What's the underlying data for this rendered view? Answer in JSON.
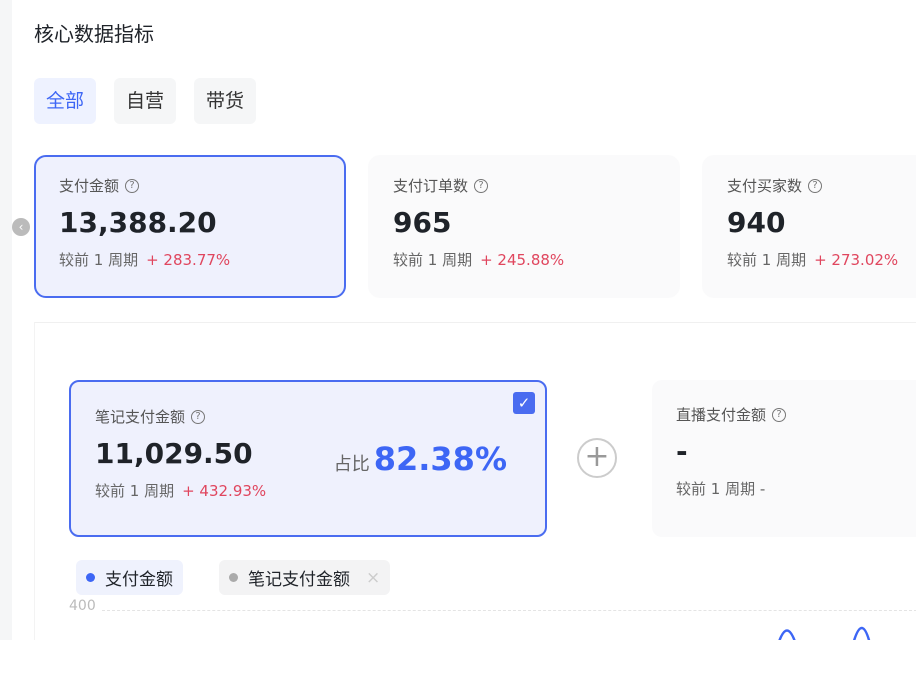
{
  "title": "核心数据指标",
  "tabs": [
    {
      "label": "全部",
      "active": true
    },
    {
      "label": "自营"
    },
    {
      "label": "带货"
    }
  ],
  "cards": [
    {
      "label": "支付金额",
      "value": "13,388.20",
      "compare": "较前 1 周期",
      "change": "+ 283.77%",
      "selected": true
    },
    {
      "label": "支付订单数",
      "value": "965",
      "compare": "较前 1 周期",
      "change": "+ 245.88%"
    },
    {
      "label": "支付买家数",
      "value": "940",
      "compare": "较前 1 周期",
      "change": "+ 273.02%"
    }
  ],
  "sub_cards": [
    {
      "label": "笔记支付金额",
      "value": "11,029.50",
      "compare": "较前 1 周期",
      "change": "+ 432.93%",
      "ratio_label": "占比",
      "ratio": "82.38%",
      "checked": true
    },
    {
      "label": "直播支付金额",
      "value": "-",
      "compare": "较前 1 周期",
      "change": "-"
    }
  ],
  "legend": [
    {
      "label": "支付金额",
      "color": "#3d66f5"
    },
    {
      "label": "笔记支付金额",
      "color": "#aaaaaa",
      "close": "×"
    }
  ],
  "chart": {
    "y_tick": "400"
  },
  "colors": {
    "accent": "#4a6cf0",
    "up": "#e0465e"
  }
}
